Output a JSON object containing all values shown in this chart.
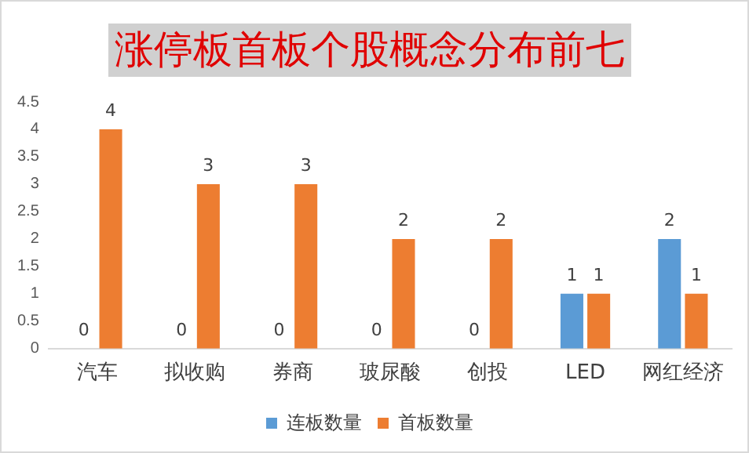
{
  "chart_data": {
    "type": "bar",
    "title": "涨停板首板个股概念分布前七",
    "categories": [
      "汽车",
      "拟收购",
      "券商",
      "玻尿酸",
      "创投",
      "LED",
      "网红经济"
    ],
    "series": [
      {
        "name": "连板数量",
        "color": "#5b9bd5",
        "values": [
          0,
          0,
          0,
          0,
          0,
          1,
          2
        ]
      },
      {
        "name": "首板数量",
        "color": "#ed7d31",
        "values": [
          4,
          3,
          3,
          2,
          2,
          1,
          1
        ]
      }
    ],
    "ylim": [
      0,
      4.5
    ],
    "yticks": [
      0,
      0.5,
      1,
      1.5,
      2,
      2.5,
      3,
      3.5,
      4,
      4.5
    ],
    "grid": false,
    "legend": "bottom",
    "data_labels": true
  }
}
